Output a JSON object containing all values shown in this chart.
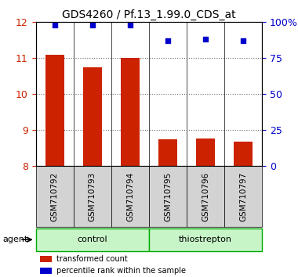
{
  "title": "GDS4260 / Pf.13_1.99.0_CDS_at",
  "samples": [
    "GSM710792",
    "GSM710793",
    "GSM710794",
    "GSM710795",
    "GSM710796",
    "GSM710797"
  ],
  "transformed_counts": [
    11.1,
    10.75,
    11.0,
    8.75,
    8.78,
    8.68
  ],
  "percentile_ranks": [
    98,
    98,
    98,
    87,
    88,
    87
  ],
  "ylim_left": [
    8,
    12
  ],
  "ylim_right": [
    0,
    100
  ],
  "yticks_left": [
    8,
    9,
    10,
    11,
    12
  ],
  "yticks_right": [
    0,
    25,
    50,
    75,
    100
  ],
  "ytick_labels_right": [
    "0",
    "25",
    "50",
    "75",
    "100%"
  ],
  "bar_color": "#cc2200",
  "dot_color": "#0000cc",
  "bar_width": 0.5,
  "groups": [
    {
      "label": "control",
      "samples": [
        0,
        1,
        2
      ],
      "color": "#90ee90",
      "edge_color": "#00aa00"
    },
    {
      "label": "thiostrepton",
      "samples": [
        3,
        4,
        5
      ],
      "color": "#90ee90",
      "edge_color": "#00aa00"
    }
  ],
  "agent_label": "agent",
  "legend_items": [
    {
      "color": "#cc2200",
      "label": "transformed count"
    },
    {
      "color": "#0000cc",
      "label": "percentile rank within the sample"
    }
  ],
  "background_color": "#ffffff",
  "plot_bg_color": "#ffffff",
  "tick_area_color": "#d3d3d3",
  "grid_linestyle": "dotted",
  "grid_color": "#000000",
  "grid_alpha": 0.6
}
